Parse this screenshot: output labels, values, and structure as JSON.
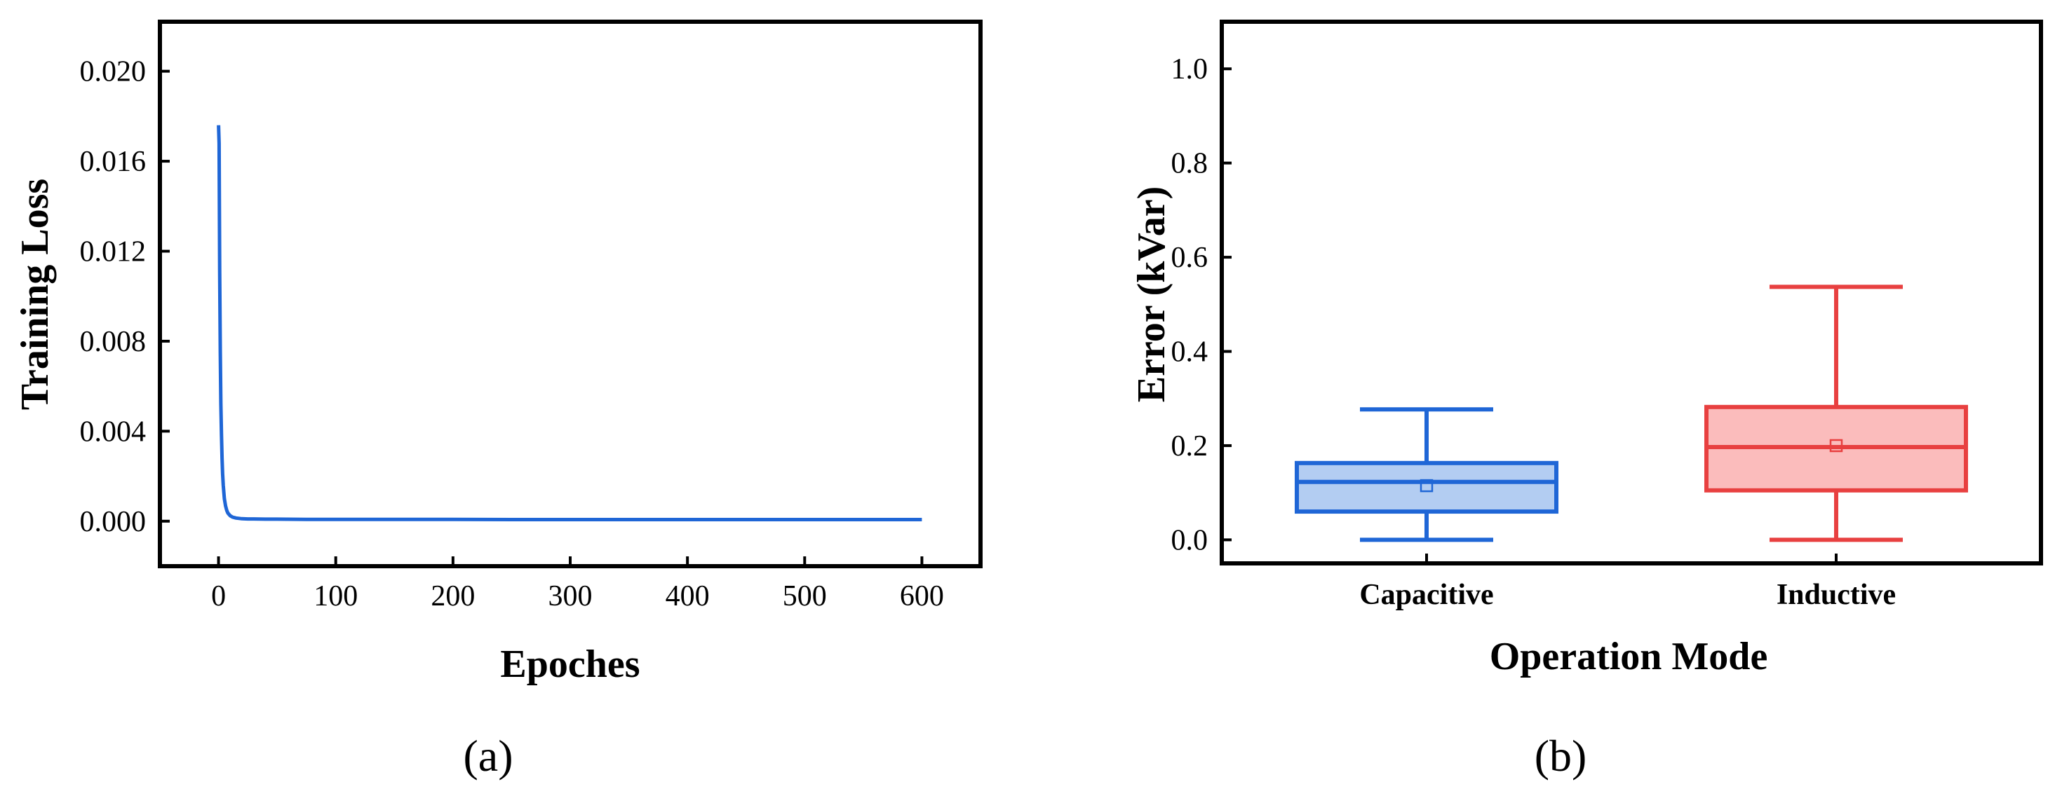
{
  "chart_data": [
    {
      "type": "line",
      "panel_label": "(a)",
      "xlabel": "Epoches",
      "ylabel": "Training Loss",
      "xlim": [
        -50,
        650
      ],
      "ylim": [
        -0.002,
        0.0222
      ],
      "x_ticks": [
        0,
        100,
        200,
        300,
        400,
        500,
        600
      ],
      "y_ticks": [
        0.0,
        0.004,
        0.008,
        0.012,
        0.016,
        0.02
      ],
      "x_tick_labels": [
        "0",
        "100",
        "200",
        "300",
        "400",
        "500",
        "600"
      ],
      "y_tick_labels": [
        "0.000",
        "0.004",
        "0.008",
        "0.012",
        "0.016",
        "0.020"
      ],
      "grid": false,
      "series": [
        {
          "color": "#1f66d6",
          "x": [
            0,
            0.5,
            1,
            1.5,
            2,
            2.5,
            3,
            3.5,
            4,
            5,
            6,
            7,
            8,
            10,
            12,
            15,
            20,
            25,
            30,
            40,
            50,
            75,
            100,
            150,
            200,
            250,
            300,
            350,
            400,
            450,
            500,
            550,
            600
          ],
          "y": [
            0.0176,
            0.0168,
            0.0112,
            0.0075,
            0.0052,
            0.0038,
            0.0028,
            0.0021,
            0.0016,
            0.001,
            0.00068,
            0.00048,
            0.00036,
            0.00024,
            0.00018,
            0.00014,
            0.00011,
            0.0001,
            0.0001,
            9e-05,
            9e-05,
            8e-05,
            8e-05,
            8e-05,
            8e-05,
            7e-05,
            7e-05,
            7e-05,
            7e-05,
            7e-05,
            7e-05,
            7e-05,
            7e-05
          ]
        }
      ]
    },
    {
      "type": "box",
      "panel_label": "(b)",
      "xlabel": "Operation Mode",
      "ylabel": "Error (kVar)",
      "ylim": [
        -0.05,
        1.1
      ],
      "y_ticks": [
        0.0,
        0.2,
        0.4,
        0.6,
        0.8,
        1.0
      ],
      "y_tick_labels": [
        "0.0",
        "0.2",
        "0.4",
        "0.6",
        "0.8",
        "1.0"
      ],
      "categories": [
        "Capacitive",
        "Inductive"
      ],
      "grid": false,
      "boxes": [
        {
          "name": "Capacitive",
          "min": 0.0,
          "q1": 0.06,
          "median": 0.123,
          "q3": 0.163,
          "max": 0.277,
          "mean": 0.115,
          "stroke": "#1f66d6",
          "fill": "#b3cdf2"
        },
        {
          "name": "Inductive",
          "min": 0.0,
          "q1": 0.105,
          "median": 0.197,
          "q3": 0.282,
          "max": 0.537,
          "mean": 0.2,
          "stroke": "#e84040",
          "fill": "#fbbcbc"
        }
      ]
    }
  ]
}
